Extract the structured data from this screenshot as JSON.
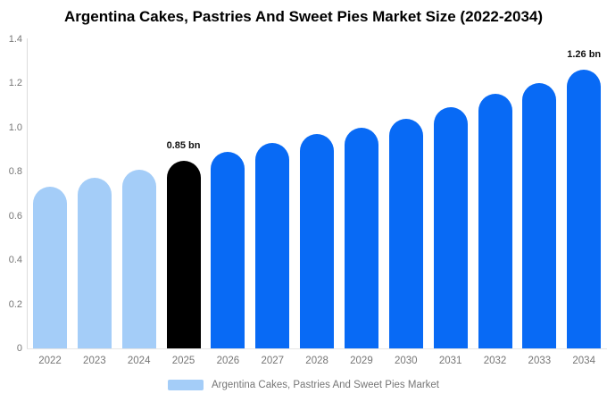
{
  "title": "Argentina Cakes, Pastries And Sweet Pies Market Size (2022-2034)",
  "chart_data": {
    "type": "bar",
    "title": "Argentina Cakes, Pastries And Sweet Pies Market Size (2022-2034)",
    "categories": [
      "2022",
      "2023",
      "2024",
      "2025",
      "2026",
      "2027",
      "2028",
      "2029",
      "2030",
      "2031",
      "2032",
      "2033",
      "2034"
    ],
    "values": [
      0.73,
      0.77,
      0.81,
      0.85,
      0.89,
      0.93,
      0.97,
      1.0,
      1.04,
      1.09,
      1.15,
      1.2,
      1.26
    ],
    "unit": "bn",
    "xlabel": "",
    "ylabel": "",
    "ylim": [
      0,
      1.4
    ],
    "ytick_labels": [
      "0",
      "0.2",
      "0.4",
      "0.6",
      "0.8",
      "1.0",
      "1.2",
      "1.4"
    ],
    "ytick_values": [
      0,
      0.2,
      0.4,
      0.6,
      0.8,
      1.0,
      1.2,
      1.4
    ],
    "grid": false,
    "bar_roles": [
      "historical",
      "historical",
      "historical",
      "base_year",
      "forecast",
      "forecast",
      "forecast",
      "forecast",
      "forecast",
      "forecast",
      "forecast",
      "forecast",
      "forecast"
    ],
    "role_colors": {
      "historical": "#a4cdf8",
      "base_year": "#000000",
      "forecast": "#086af5"
    },
    "annotations": [
      {
        "category": "2025",
        "text": "0.85 bn"
      },
      {
        "category": "2034",
        "text": "1.26 bn"
      }
    ],
    "legend_position": "bottom",
    "legend": [
      {
        "label": "Argentina Cakes, Pastries And Sweet Pies Market",
        "color": "#a4cdf8"
      }
    ]
  }
}
